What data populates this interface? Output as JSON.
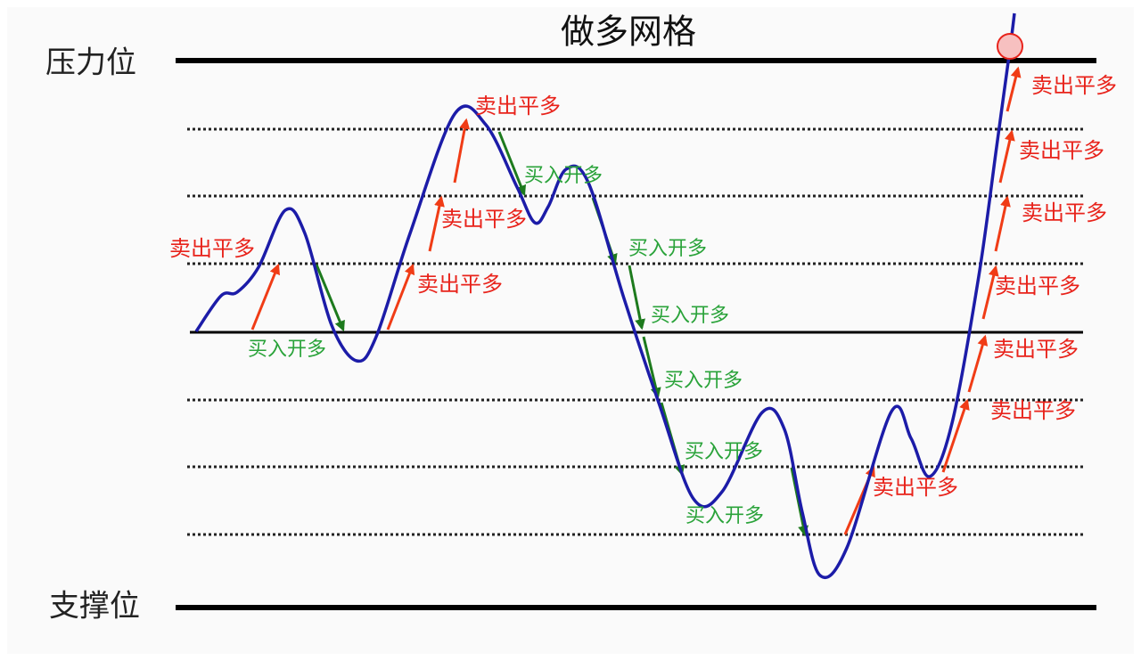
{
  "title": "做多网格",
  "resistance": "压力位",
  "support": "支撑位",
  "sell_labels": [
    "卖出平多",
    "卖出平多",
    "卖出平多",
    "卖出平多",
    "卖出平多",
    "卖出平多",
    "卖出平多",
    "卖出平多",
    "卖出平多",
    "卖出平多",
    "卖出平多"
  ],
  "buy_labels": [
    "买入开多",
    "买入开多",
    "买入开多",
    "买入开多",
    "买入开多",
    "买入开多",
    "买入开多"
  ]
}
